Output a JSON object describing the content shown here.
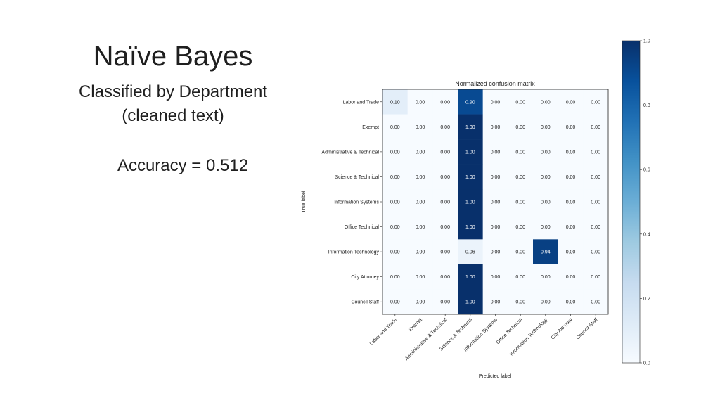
{
  "slide": {
    "title": "Naïve Bayes",
    "subtitle_line1": "Classified by Department",
    "subtitle_line2": "(cleaned text)",
    "accuracy": "Accuracy = 0.512"
  },
  "chart_data": {
    "type": "heatmap",
    "title": "Normalized confusion matrix",
    "xlabel": "Predicted label",
    "ylabel": "True label",
    "row_labels": [
      "Labor and Trade",
      "Exempt",
      "Administrative & Technical",
      "Science & Technical",
      "Information Systems",
      "Office Technical",
      "Information Technology",
      "City Attorney",
      "Council Staff"
    ],
    "col_labels": [
      "Labor and Trade",
      "Exempt",
      "Administrative & Technical",
      "Science & Technical",
      "Information Systems",
      "Office Technical",
      "Information Technology",
      "City Attorney",
      "Council Staff"
    ],
    "values": [
      [
        0.1,
        0.0,
        0.0,
        0.9,
        0.0,
        0.0,
        0.0,
        0.0,
        0.0
      ],
      [
        0.0,
        0.0,
        0.0,
        1.0,
        0.0,
        0.0,
        0.0,
        0.0,
        0.0
      ],
      [
        0.0,
        0.0,
        0.0,
        1.0,
        0.0,
        0.0,
        0.0,
        0.0,
        0.0
      ],
      [
        0.0,
        0.0,
        0.0,
        1.0,
        0.0,
        0.0,
        0.0,
        0.0,
        0.0
      ],
      [
        0.0,
        0.0,
        0.0,
        1.0,
        0.0,
        0.0,
        0.0,
        0.0,
        0.0
      ],
      [
        0.0,
        0.0,
        0.0,
        1.0,
        0.0,
        0.0,
        0.0,
        0.0,
        0.0
      ],
      [
        0.0,
        0.0,
        0.0,
        0.06,
        0.0,
        0.0,
        0.94,
        0.0,
        0.0
      ],
      [
        0.0,
        0.0,
        0.0,
        1.0,
        0.0,
        0.0,
        0.0,
        0.0,
        0.0
      ],
      [
        0.0,
        0.0,
        0.0,
        1.0,
        0.0,
        0.0,
        0.0,
        0.0,
        0.0
      ]
    ],
    "cell_labels": [
      [
        "0.10",
        "0.00",
        "0.00",
        "0.90",
        "0.00",
        "0.00",
        "0.00",
        "0.00",
        "0.00"
      ],
      [
        "0.00",
        "0.00",
        "0.00",
        "1.00",
        "0.00",
        "0.00",
        "0.00",
        "0.00",
        "0.00"
      ],
      [
        "0.00",
        "0.00",
        "0.00",
        "1.00",
        "0.00",
        "0.00",
        "0.00",
        "0.00",
        "0.00"
      ],
      [
        "0.00",
        "0.00",
        "0.00",
        "1.00",
        "0.00",
        "0.00",
        "0.00",
        "0.00",
        "0.00"
      ],
      [
        "0.00",
        "0.00",
        "0.00",
        "1.00",
        "0.00",
        "0.00",
        "0.00",
        "0.00",
        "0.00"
      ],
      [
        "0.00",
        "0.00",
        "0.00",
        "1.00",
        "0.00",
        "0.00",
        "0.00",
        "0.00",
        "0.00"
      ],
      [
        "0.00",
        "0.00",
        "0.00",
        "0.06",
        "0.00",
        "0.00",
        "0.94",
        "0.00",
        "0.00"
      ],
      [
        "0.00",
        "0.00",
        "0.00",
        "1.00",
        "0.00",
        "0.00",
        "0.00",
        "0.00",
        "0.00"
      ],
      [
        "0.00",
        "0.00",
        "0.00",
        "1.00",
        "0.00",
        "0.00",
        "0.00",
        "0.00",
        "0.00"
      ]
    ],
    "colorbar": {
      "range": [
        0.0,
        1.0
      ],
      "ticks": [
        0.0,
        0.2,
        0.4,
        0.6,
        0.8,
        1.0
      ],
      "tick_labels": [
        "0.0",
        "0.2",
        "0.4",
        "0.6",
        "0.8",
        "1.0"
      ],
      "colormap": "Blues",
      "color_low": "#f7fbff",
      "color_high": "#08306b"
    },
    "grid": false
  }
}
